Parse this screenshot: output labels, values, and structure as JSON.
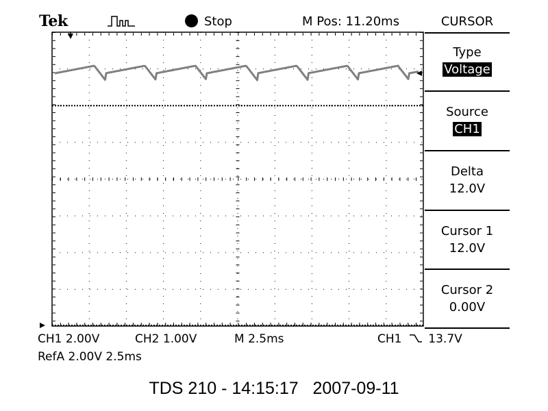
{
  "header": {
    "brand": "Tek",
    "status": "Stop",
    "m_pos": "M Pos: 11.20ms",
    "menu_title": "CURSOR"
  },
  "menu": [
    {
      "label": "Type",
      "value": "Voltage",
      "highlight": true
    },
    {
      "label": "Source",
      "value": "CH1",
      "highlight": true
    },
    {
      "label": "Delta",
      "value": "12.0V",
      "highlight": false
    },
    {
      "label": "Cursor 1",
      "value": "12.0V",
      "highlight": false
    },
    {
      "label": "Cursor 2",
      "value": "0.00V",
      "highlight": false
    }
  ],
  "readouts": {
    "ch1": "CH1  2.00V",
    "ch2": "CH2  1.00V",
    "timebase": "M 2.5ms",
    "trigger_source": "CH1",
    "trigger_level": "13.7V",
    "ref": "RefA  2.00V  2.5ms"
  },
  "footer": "TDS 210 - 14:15:17   2007-09-11",
  "colors": {
    "trace": "#808080",
    "grid": "#000000",
    "background": "#ffffff"
  },
  "icons": [
    "trigger-position-arrow-icon",
    "acquisition-waveform-icon",
    "stop-dot-icon",
    "ch1-ground-marker-icon",
    "trigger-level-marker-icon",
    "falling-edge-icon"
  ]
}
